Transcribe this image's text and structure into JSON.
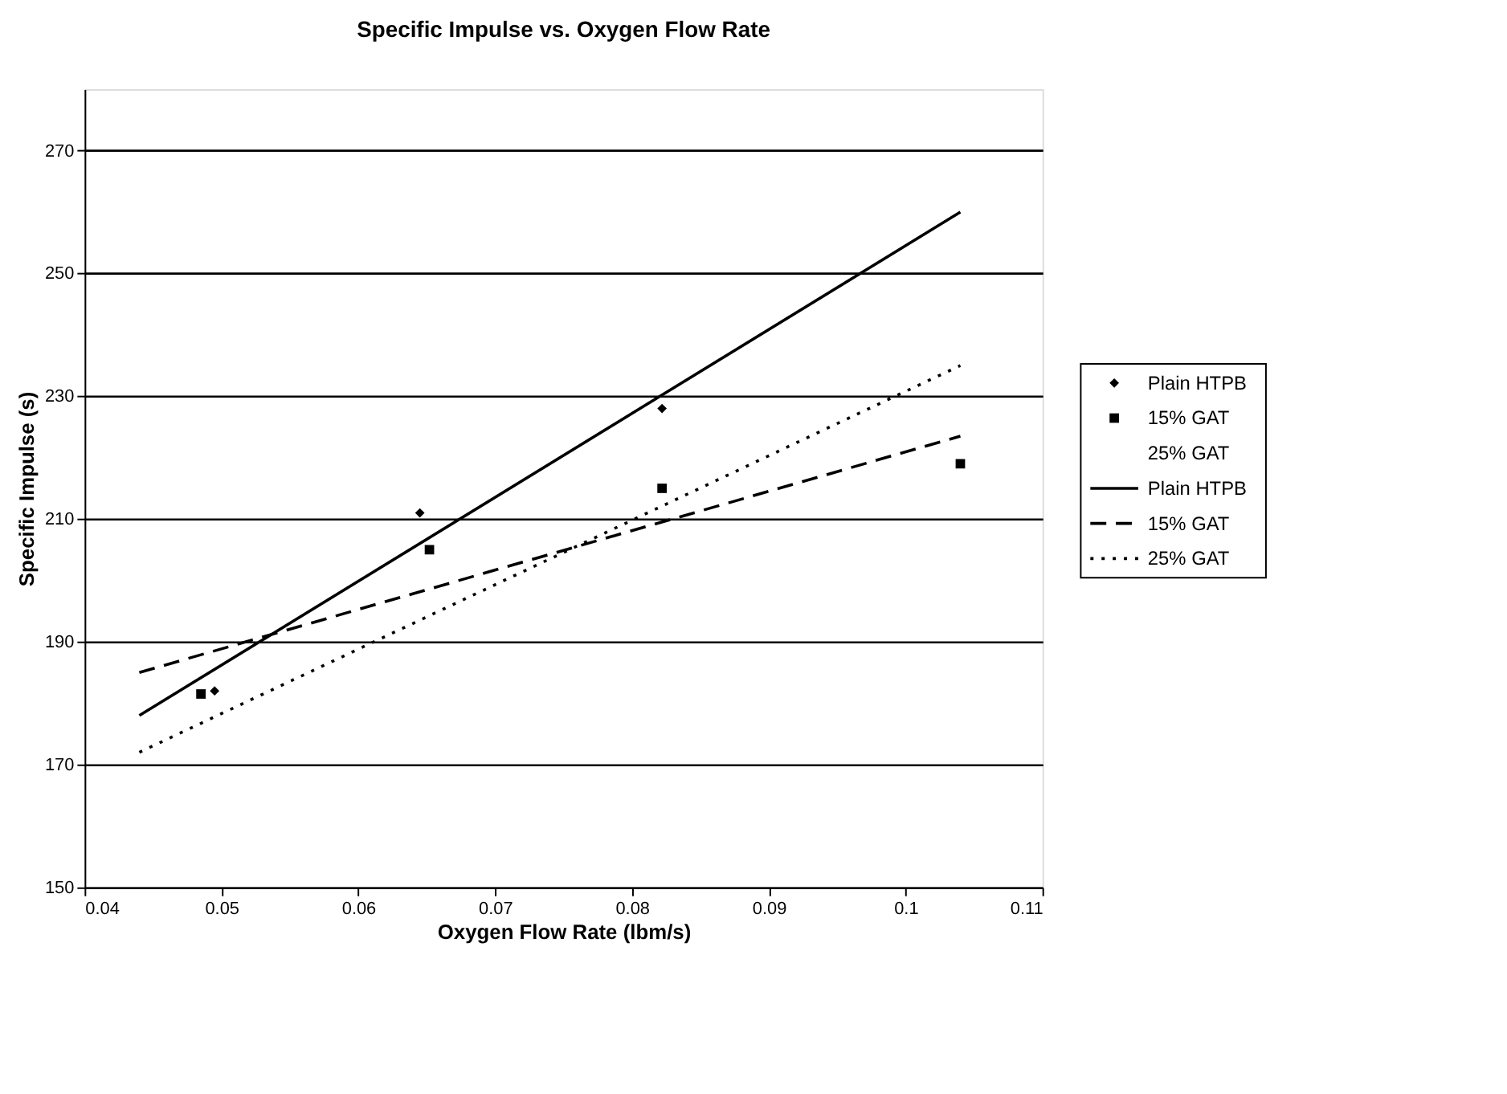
{
  "chart_data": {
    "type": "scatter",
    "title": "Specific Impulse vs. Oxygen Flow Rate",
    "xlabel": "Oxygen Flow Rate (lbm/s)",
    "ylabel": "Specific Impulse (s)",
    "xlim": [
      0.04,
      0.11
    ],
    "xticks": [
      0.04,
      0.05,
      0.06,
      0.07,
      0.08,
      0.09,
      0.1,
      0.11
    ],
    "ylim": [
      150,
      280
    ],
    "yticks": [
      150,
      170,
      190,
      210,
      230,
      250,
      270
    ],
    "grid": "y",
    "legend": "right",
    "series": [
      {
        "name": "Plain HTPB",
        "type": "scatter",
        "marker": "diamond",
        "color": "#000000",
        "x": [
          0.0495,
          0.0645,
          0.0822
        ],
        "values": [
          182,
          211,
          228
        ]
      },
      {
        "name": "15% GAT",
        "type": "scatter",
        "marker": "square",
        "color": "#000000",
        "x": [
          0.0485,
          0.0652,
          0.0822,
          0.104
        ],
        "values": [
          181.5,
          205,
          215,
          219
        ]
      },
      {
        "name": "25% GAT",
        "type": "scatter",
        "marker": "none",
        "color": "#000000"
      },
      {
        "name": "Plain HTPB",
        "type": "line",
        "line_style": "solid",
        "color": "#000000",
        "x": [
          0.044,
          0.104
        ],
        "values": [
          178,
          260
        ]
      },
      {
        "name": "15% GAT",
        "type": "line",
        "line_style": "dashed",
        "color": "#000000",
        "x": [
          0.044,
          0.104
        ],
        "values": [
          185,
          223.5
        ]
      },
      {
        "name": "25% GAT",
        "type": "line",
        "line_style": "dotted",
        "color": "#000000",
        "x": [
          0.044,
          0.104
        ],
        "values": [
          172,
          235
        ]
      }
    ]
  }
}
